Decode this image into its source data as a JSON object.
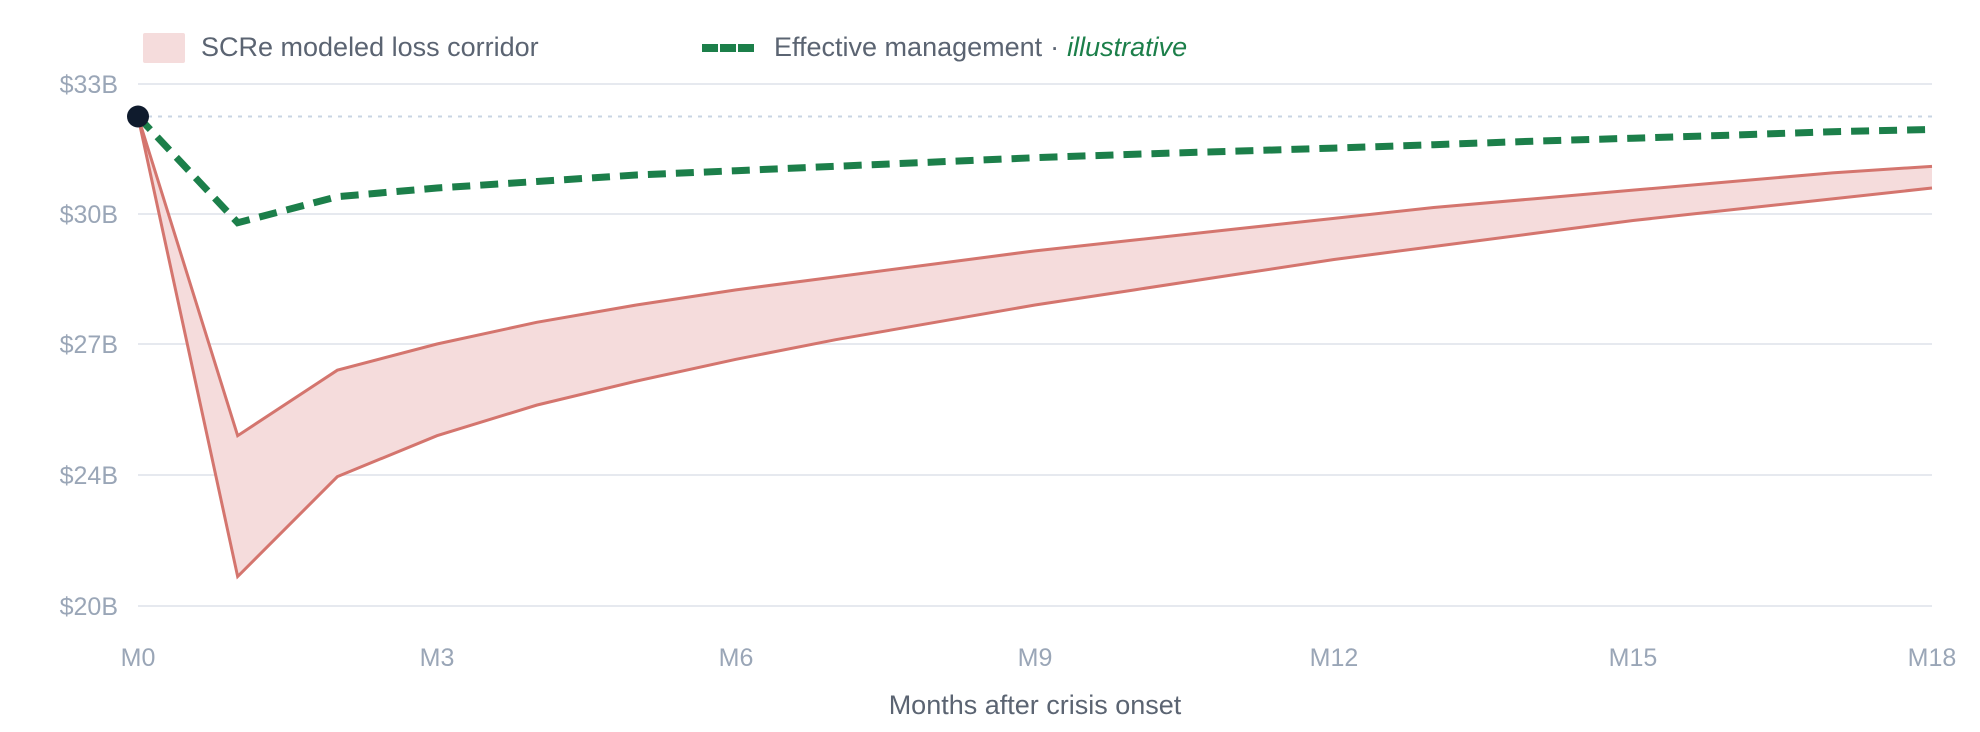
{
  "chart_data": {
    "type": "area",
    "title": "",
    "xlabel": "Months after crisis onset",
    "ylabel": "",
    "x": [
      0,
      1,
      2,
      3,
      4,
      5,
      6,
      7,
      8,
      9,
      10,
      11,
      12,
      13,
      14,
      15,
      16,
      17,
      18
    ],
    "x_tick_labels": [
      "M0",
      "M3",
      "M6",
      "M9",
      "M12",
      "M15",
      "M18"
    ],
    "x_tick_values": [
      0,
      3,
      6,
      9,
      12,
      15,
      18
    ],
    "y_tick_labels": [
      "$33B",
      "$30B",
      "$27B",
      "$24B",
      "$20B"
    ],
    "y_tick_values": [
      33,
      30,
      27,
      24,
      20
    ],
    "ylim": [
      20,
      33
    ],
    "xlim": [
      0,
      18
    ],
    "baseline": {
      "value": 32.25,
      "style": "dotted"
    },
    "start_marker": {
      "x": 0,
      "y": 32.25
    },
    "grid": "horizontal",
    "legend_position": "top-left",
    "series": [
      {
        "name": "SCRe modeled loss corridor",
        "kind": "band",
        "color": "#d4756e",
        "fill": "#f5dcdc",
        "upper": [
          32.25,
          24.9,
          26.4,
          27.0,
          27.5,
          27.9,
          28.25,
          28.55,
          28.85,
          29.15,
          29.4,
          29.65,
          29.9,
          30.15,
          30.35,
          30.55,
          30.75,
          30.95,
          31.1
        ],
        "lower": [
          32.25,
          20.9,
          23.95,
          24.9,
          25.6,
          26.15,
          26.65,
          27.1,
          27.5,
          27.9,
          28.25,
          28.6,
          28.95,
          29.25,
          29.55,
          29.85,
          30.1,
          30.35,
          30.6
        ]
      },
      {
        "name": "Effective management",
        "note": "illustrative",
        "kind": "line",
        "style": "dashed",
        "color": "#1c7f4a",
        "values": [
          32.25,
          29.8,
          30.4,
          30.6,
          30.75,
          30.9,
          31.0,
          31.1,
          31.2,
          31.3,
          31.38,
          31.45,
          31.52,
          31.6,
          31.68,
          31.75,
          31.82,
          31.9,
          31.95
        ]
      }
    ]
  },
  "legend": {
    "band_label": "SCRe modeled loss corridor",
    "line_label": "Effective management",
    "separator": "·",
    "line_note": "illustrative"
  }
}
